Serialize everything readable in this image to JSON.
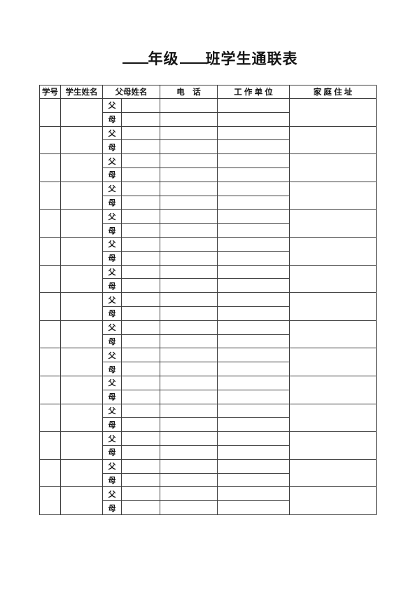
{
  "title": {
    "blank1": "____",
    "grade_label": "年级",
    "blank2": "____",
    "suffix": "班学生通联表",
    "full": "____年级____班学生通联表"
  },
  "table": {
    "headers": {
      "student_id": "学号",
      "student_name": "学生姓名",
      "parents_name": "父母姓名",
      "phone": "电　话",
      "work_unit": "工 作 单 位",
      "home_address": "家 庭 住 址"
    },
    "parent_labels": {
      "father": "父",
      "mother": "母"
    },
    "student_row_count": 15,
    "rows": [
      {
        "student_id": "",
        "student_name": "",
        "father": {
          "name": "",
          "phone": "",
          "work_unit": ""
        },
        "mother": {
          "name": "",
          "phone": "",
          "work_unit": ""
        },
        "home_address": ""
      },
      {
        "student_id": "",
        "student_name": "",
        "father": {
          "name": "",
          "phone": "",
          "work_unit": ""
        },
        "mother": {
          "name": "",
          "phone": "",
          "work_unit": ""
        },
        "home_address": ""
      },
      {
        "student_id": "",
        "student_name": "",
        "father": {
          "name": "",
          "phone": "",
          "work_unit": ""
        },
        "mother": {
          "name": "",
          "phone": "",
          "work_unit": ""
        },
        "home_address": ""
      },
      {
        "student_id": "",
        "student_name": "",
        "father": {
          "name": "",
          "phone": "",
          "work_unit": ""
        },
        "mother": {
          "name": "",
          "phone": "",
          "work_unit": ""
        },
        "home_address": ""
      },
      {
        "student_id": "",
        "student_name": "",
        "father": {
          "name": "",
          "phone": "",
          "work_unit": ""
        },
        "mother": {
          "name": "",
          "phone": "",
          "work_unit": ""
        },
        "home_address": ""
      },
      {
        "student_id": "",
        "student_name": "",
        "father": {
          "name": "",
          "phone": "",
          "work_unit": ""
        },
        "mother": {
          "name": "",
          "phone": "",
          "work_unit": ""
        },
        "home_address": ""
      },
      {
        "student_id": "",
        "student_name": "",
        "father": {
          "name": "",
          "phone": "",
          "work_unit": ""
        },
        "mother": {
          "name": "",
          "phone": "",
          "work_unit": ""
        },
        "home_address": ""
      },
      {
        "student_id": "",
        "student_name": "",
        "father": {
          "name": "",
          "phone": "",
          "work_unit": ""
        },
        "mother": {
          "name": "",
          "phone": "",
          "work_unit": ""
        },
        "home_address": ""
      },
      {
        "student_id": "",
        "student_name": "",
        "father": {
          "name": "",
          "phone": "",
          "work_unit": ""
        },
        "mother": {
          "name": "",
          "phone": "",
          "work_unit": ""
        },
        "home_address": ""
      },
      {
        "student_id": "",
        "student_name": "",
        "father": {
          "name": "",
          "phone": "",
          "work_unit": ""
        },
        "mother": {
          "name": "",
          "phone": "",
          "work_unit": ""
        },
        "home_address": ""
      },
      {
        "student_id": "",
        "student_name": "",
        "father": {
          "name": "",
          "phone": "",
          "work_unit": ""
        },
        "mother": {
          "name": "",
          "phone": "",
          "work_unit": ""
        },
        "home_address": ""
      },
      {
        "student_id": "",
        "student_name": "",
        "father": {
          "name": "",
          "phone": "",
          "work_unit": ""
        },
        "mother": {
          "name": "",
          "phone": "",
          "work_unit": ""
        },
        "home_address": ""
      },
      {
        "student_id": "",
        "student_name": "",
        "father": {
          "name": "",
          "phone": "",
          "work_unit": ""
        },
        "mother": {
          "name": "",
          "phone": "",
          "work_unit": ""
        },
        "home_address": ""
      },
      {
        "student_id": "",
        "student_name": "",
        "father": {
          "name": "",
          "phone": "",
          "work_unit": ""
        },
        "mother": {
          "name": "",
          "phone": "",
          "work_unit": ""
        },
        "home_address": ""
      },
      {
        "student_id": "",
        "student_name": "",
        "father": {
          "name": "",
          "phone": "",
          "work_unit": ""
        },
        "mother": {
          "name": "",
          "phone": "",
          "work_unit": ""
        },
        "home_address": ""
      }
    ]
  },
  "colors": {
    "border": "#3f3f3f",
    "text": "#151515",
    "background": "#ffffff"
  }
}
